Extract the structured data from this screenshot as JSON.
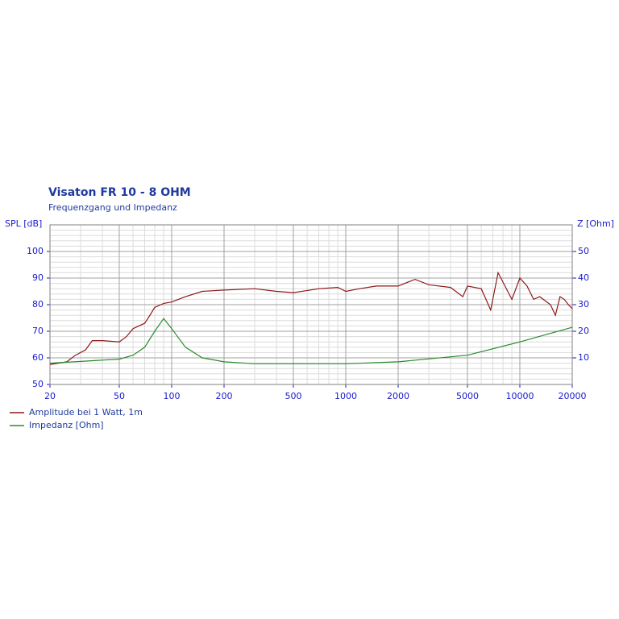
{
  "chart_data": {
    "type": "line",
    "title": "Visaton FR 10 - 8 OHM",
    "subtitle": "Frequenzgang und Impedanz",
    "ylabel": "SPL [dB]",
    "y2label": "Z [Ohm]",
    "xscale": "log",
    "grid": true,
    "xlim": [
      20,
      20000
    ],
    "xticks": [
      20,
      50,
      100,
      200,
      500,
      1000,
      2000,
      5000,
      10000,
      20000
    ],
    "xminorticks": [
      30,
      40,
      60,
      70,
      80,
      90,
      300,
      400,
      600,
      700,
      800,
      900,
      3000,
      4000,
      6000,
      7000,
      8000,
      9000
    ],
    "ylim": [
      50,
      110
    ],
    "yticks": [
      50,
      60,
      70,
      80,
      90,
      100
    ],
    "yminorticks": [
      52,
      54,
      56,
      58,
      62,
      64,
      66,
      68,
      72,
      74,
      76,
      78,
      82,
      84,
      86,
      88,
      92,
      94,
      96,
      98,
      102,
      104,
      106,
      108
    ],
    "y2lim": [
      0,
      60
    ],
    "y2ticks": [
      10,
      20,
      30,
      40,
      50
    ],
    "series": [
      {
        "name": "Amplitude bei 1 Watt, 1m",
        "color": "#8b1a1a",
        "x": [
          20,
          25,
          28,
          32,
          35,
          40,
          50,
          55,
          60,
          70,
          75,
          80,
          90,
          100,
          120,
          150,
          200,
          300,
          400,
          500,
          700,
          900,
          1000,
          1200,
          1500,
          2000,
          2500,
          3000,
          4000,
          4700,
          5000,
          6000,
          6800,
          7500,
          9000,
          10000,
          11000,
          12000,
          13000,
          15000,
          16000,
          17000,
          18000,
          19000,
          20000
        ],
        "values": [
          57.5,
          58.5,
          61,
          63,
          66.5,
          66.5,
          66,
          68,
          71,
          73,
          76,
          79,
          80.5,
          81,
          83,
          85,
          85.5,
          86,
          85,
          84.5,
          86,
          86.5,
          85,
          86,
          87,
          87,
          89.5,
          87.5,
          86.5,
          83,
          87,
          86,
          78,
          92,
          82,
          90,
          87,
          82,
          83,
          80,
          76,
          83,
          82,
          80,
          78.5
        ]
      },
      {
        "name": "Impedanz [Ohm]",
        "color": "#2a8a2a",
        "axis": "y2",
        "x": [
          20,
          50,
          60,
          70,
          80,
          90,
          100,
          120,
          150,
          200,
          300,
          1000,
          2000,
          5000,
          10000,
          20000
        ],
        "values": [
          8,
          9.5,
          11,
          14,
          20,
          24.8,
          21,
          14,
          10,
          8.5,
          7.8,
          7.8,
          8.5,
          11,
          16,
          21.5
        ]
      }
    ]
  }
}
